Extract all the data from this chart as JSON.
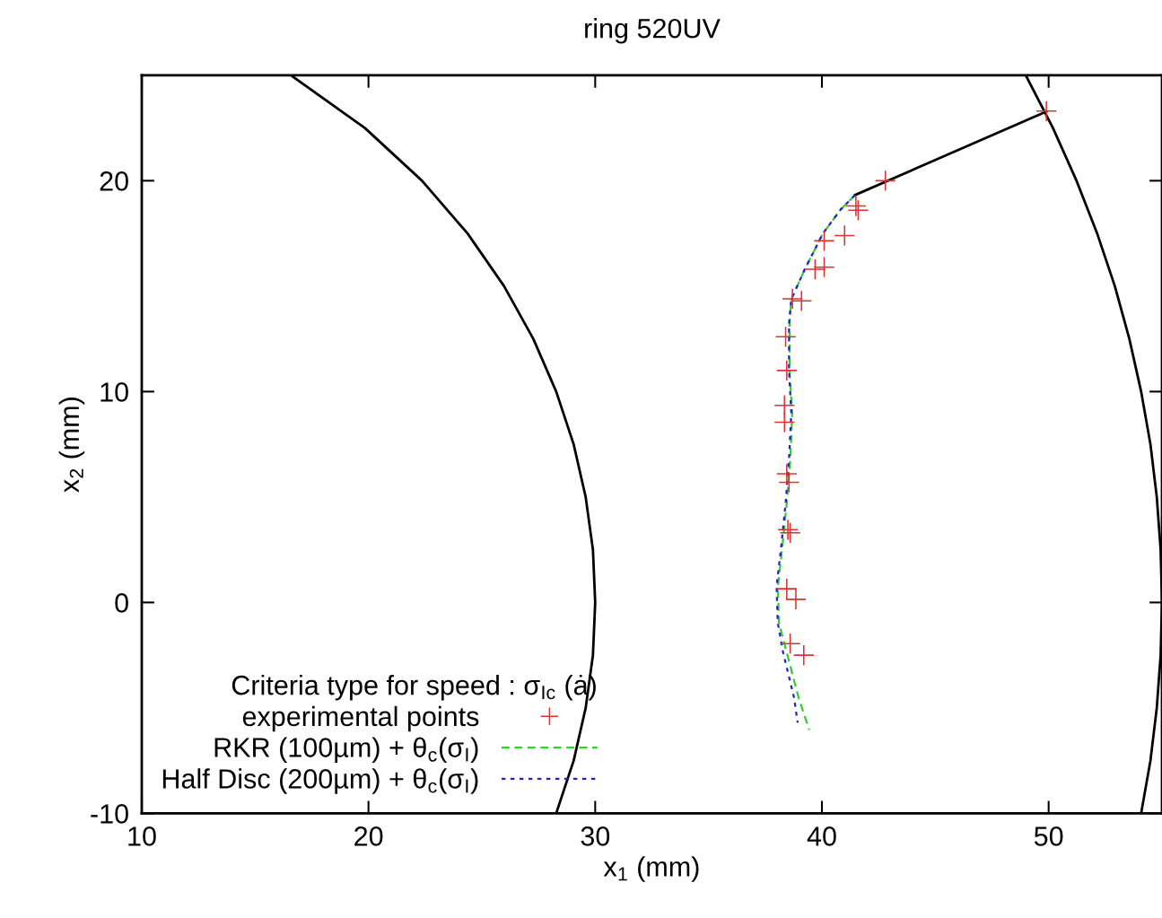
{
  "chart_data": {
    "type": "line",
    "title": "ring 520UV",
    "xlabel": "x$_{1}$ (mm)",
    "ylabel": "x$_{2}$ (mm)",
    "legend_title": "Criteria type for speed : σ$_{Ic}$ (ȧ)",
    "xlim": [
      10,
      55
    ],
    "ylim": [
      -10,
      25
    ],
    "xticks": [
      10,
      20,
      30,
      40,
      50
    ],
    "yticks": [
      -10,
      0,
      10,
      20
    ],
    "grid": false,
    "legend": "bottom left",
    "series": [
      {
        "color": "#000000",
        "type": "line",
        "line_style": "solid",
        "x": [
          16.58,
          19.84,
          22.36,
          24.37,
          25.98,
          27.27,
          28.28,
          29.05,
          29.58,
          29.9,
          30,
          29.9,
          29.58,
          29.05,
          28.28
        ],
        "values": [
          25,
          22.5,
          20,
          17.5,
          15,
          12.5,
          10,
          7.5,
          5,
          2.5,
          0,
          -2.5,
          -5,
          -7.5,
          -10
        ]
      },
      {
        "color": "#000000",
        "type": "line",
        "line_style": "solid",
        "x": [
          48.99,
          50.19,
          51.23,
          52.14,
          52.92,
          53.56,
          54.08,
          54.49,
          54.77,
          54.94,
          55,
          54.94,
          54.77,
          54.49,
          54.08
        ],
        "values": [
          25,
          22.5,
          20,
          17.5,
          15,
          12.5,
          10,
          7.5,
          5,
          2.5,
          0,
          -2.5,
          -5,
          -7.5,
          -10
        ]
      },
      {
        "color": "#000000",
        "line_style": "solid",
        "x": [
          41.46,
          49.9
        ],
        "values": [
          19.32,
          23.28
        ]
      },
      {
        "name": "experimental points",
        "color": "#e03030",
        "type": "scatter",
        "marker": "cross",
        "x": [
          49.9,
          42.8,
          41.5,
          41.6,
          41.0,
          40.1,
          39.7,
          40.1,
          38.7,
          39.1,
          38.4,
          38.45,
          38.35,
          38.35,
          38.45,
          38.55,
          38.5,
          38.6,
          38.45,
          38.85,
          38.6,
          39.2
        ],
        "values": [
          23.3,
          20.0,
          18.8,
          18.6,
          17.4,
          17.15,
          15.8,
          15.9,
          14.4,
          14.3,
          12.6,
          11.0,
          9.35,
          8.55,
          6.1,
          5.7,
          3.45,
          3.3,
          0.65,
          0.15,
          -1.95,
          -2.5
        ]
      },
      {
        "name": "RKR (100µm) + θ$_{c}$(σ$_{I}$)",
        "color": "#33cc33",
        "line_style": "dashed",
        "x": [
          41.46,
          40.83,
          40.04,
          39.24,
          38.65,
          38.57,
          38.57,
          38.69,
          38.61,
          38.45,
          38.25,
          38.06,
          38.1,
          38.45,
          38.97,
          39.44
        ],
        "values": [
          19.32,
          18.64,
          17.49,
          15.79,
          14.38,
          13.23,
          10.98,
          8.98,
          6.85,
          4.72,
          2.6,
          0.77,
          -0.94,
          -2.38,
          -4.51,
          -6.04
        ]
      },
      {
        "name": "Half Disc (200µm) + θ$_{c}$(σ$_{I}$)",
        "color": "#2222cc",
        "line_style": "dotted",
        "x": [
          41.46,
          40.83,
          40.04,
          39.24,
          38.65,
          38.55,
          38.55,
          38.65,
          38.55,
          38.4,
          38.2,
          38.0,
          38.05,
          38.29,
          38.77,
          38.93
        ],
        "values": [
          19.32,
          18.64,
          17.49,
          15.79,
          14.38,
          13.23,
          10.98,
          8.98,
          6.85,
          4.72,
          2.6,
          0.77,
          -0.94,
          -2.38,
          -4.51,
          -5.7
        ]
      }
    ]
  }
}
